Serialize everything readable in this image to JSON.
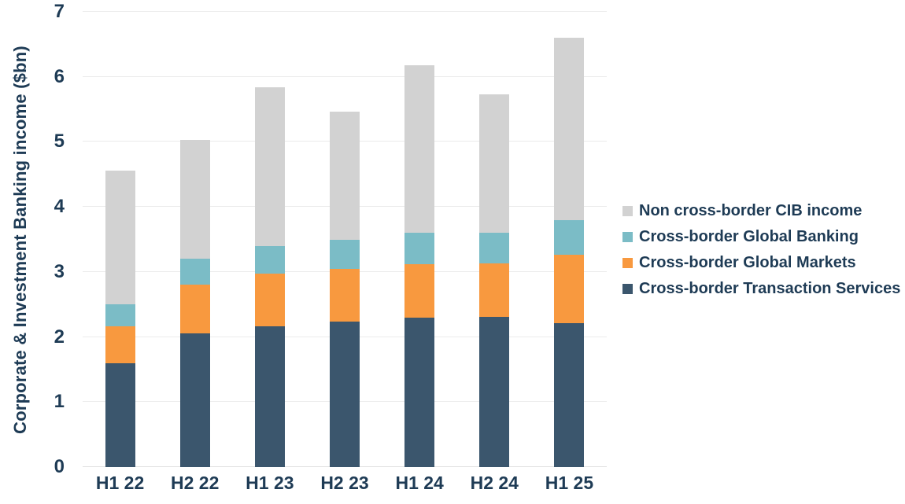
{
  "colors": {
    "text": "#1e3b55",
    "gridline": "#ebebeb",
    "non_cross_border": "#d2d2d2",
    "global_banking": "#7bbcc6",
    "global_markets": "#f8993f",
    "transaction_services": "#3b566d"
  },
  "chart_data": {
    "type": "bar",
    "stacked": true,
    "title": "",
    "xlabel": "",
    "ylabel": "Corporate & Investment Banking income ($bn)",
    "ylim": [
      0,
      7
    ],
    "yticks": [
      0,
      1,
      2,
      3,
      4,
      5,
      6,
      7
    ],
    "grid": true,
    "legend_position": "right",
    "categories": [
      "H1 22",
      "H2 22",
      "H1 23",
      "H2 23",
      "H1 24",
      "H2 24",
      "H1 25"
    ],
    "series": [
      {
        "name": "Cross-border Transaction Services",
        "color": "#3b566d",
        "values": [
          1.6,
          2.05,
          2.17,
          2.24,
          2.3,
          2.31,
          2.21
        ]
      },
      {
        "name": "Cross-border Global Markets",
        "color": "#f8993f",
        "values": [
          0.57,
          0.75,
          0.8,
          0.81,
          0.82,
          0.82,
          1.06
        ]
      },
      {
        "name": "Cross-border Global Banking",
        "color": "#7bbcc6",
        "values": [
          0.33,
          0.4,
          0.43,
          0.45,
          0.48,
          0.47,
          0.53
        ]
      },
      {
        "name": "Non cross-border CIB income",
        "color": "#d2d2d2",
        "values": [
          2.06,
          1.83,
          2.44,
          1.96,
          2.58,
          2.13,
          2.8
        ]
      }
    ],
    "totals": [
      4.56,
      5.03,
      5.84,
      5.46,
      6.18,
      5.73,
      6.6
    ],
    "legend": [
      {
        "label": "Non cross-border CIB income",
        "color": "#d2d2d2"
      },
      {
        "label": "Cross-border Global Banking",
        "color": "#7bbcc6"
      },
      {
        "label": "Cross-border Global Markets",
        "color": "#f8993f"
      },
      {
        "label": "Cross-border Transaction Services",
        "color": "#3b566d"
      }
    ]
  }
}
